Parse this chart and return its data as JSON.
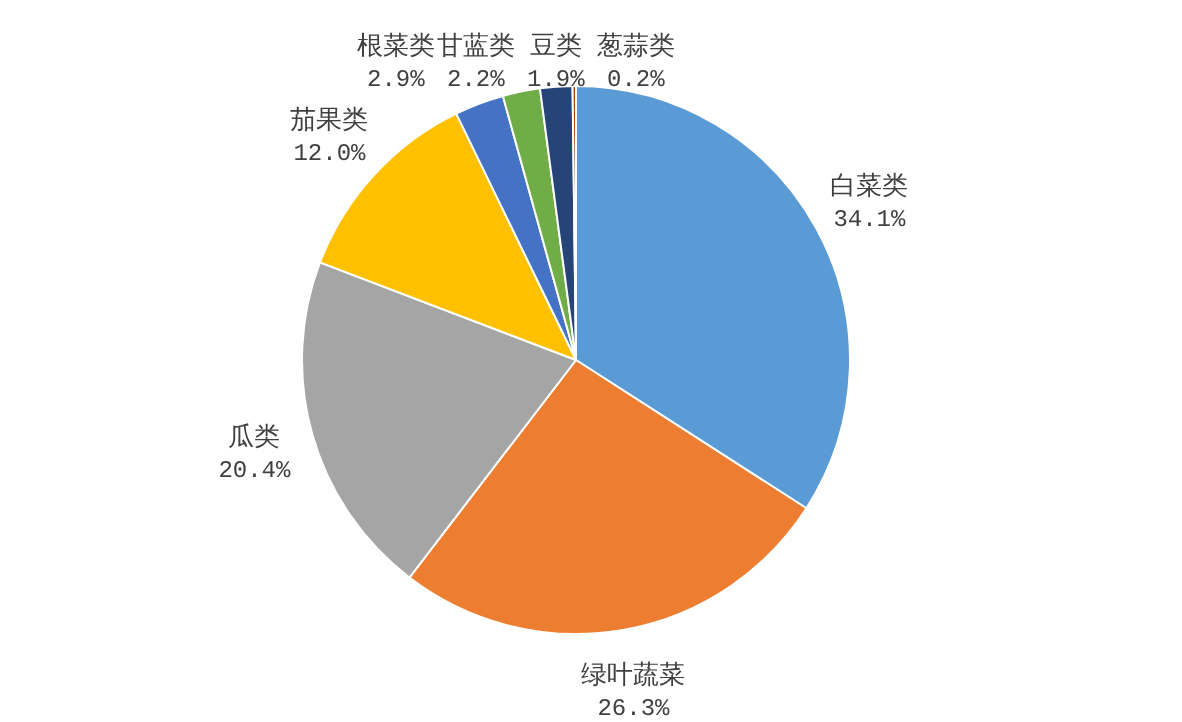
{
  "chart_data": {
    "type": "pie",
    "categories": [
      "白菜类",
      "绿叶蔬菜",
      "瓜类",
      "茄果类",
      "根菜类",
      "甘蓝类",
      "豆类",
      "葱蒜类"
    ],
    "values": [
      34.1,
      26.3,
      20.4,
      12.0,
      2.9,
      2.2,
      1.9,
      0.2
    ],
    "value_labels": [
      "34.1%",
      "26.3%",
      "20.4%",
      "12.0%",
      "2.9%",
      "2.2%",
      "1.9%",
      "0.2%"
    ],
    "colors": [
      "#5b9bd5",
      "#ed7d31",
      "#a5a5a5",
      "#ffc000",
      "#4472c4",
      "#70ad47",
      "#264478",
      "#9e480e"
    ],
    "legend": false
  }
}
